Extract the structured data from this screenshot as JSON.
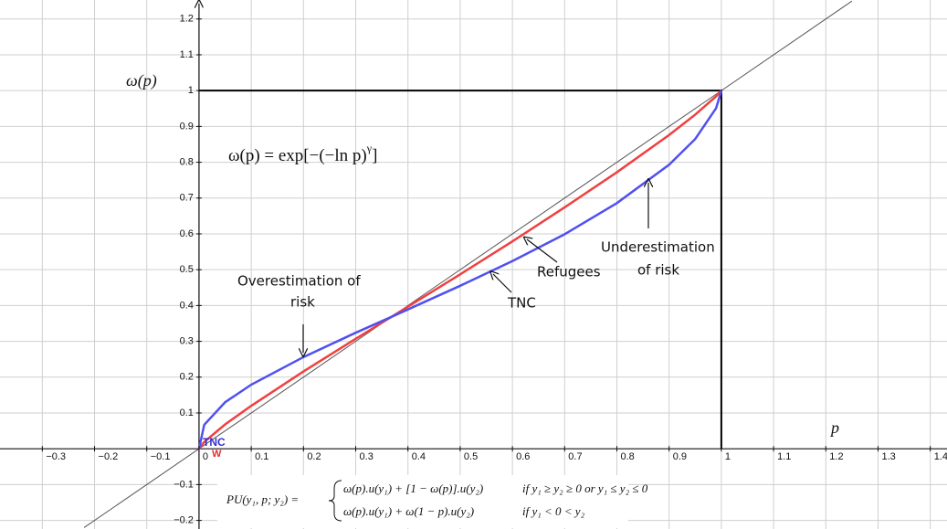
{
  "chart_data": {
    "type": "line",
    "x_label": "p",
    "y_label": "ω(p)",
    "formula": {
      "base": "ω(p) = exp[−(−ln p)",
      "exp": "γ",
      "end": "]"
    },
    "pu_formula": {
      "lhs": "PU(y₁, p; y₂) =",
      "case1": "ω(p).u(y₁) + [1 − ω(p)].u(y₂)",
      "cond1": "if y₁ ≥ y₂ ≥ 0 or y₁ ≤ y₂ ≤ 0",
      "case2": "ω(p).u(y₁) + ω(1 − p).u(y₂)",
      "cond2": "if y₁ < 0 < y₂"
    },
    "annotations": {
      "over1": "Overestimation of",
      "over2": "risk",
      "under1": "Underestimation",
      "under2": "of risk",
      "w": "W"
    },
    "xlim": [
      -0.381,
      1.432
    ],
    "ylim": [
      -0.224,
      1.253
    ],
    "grid": true,
    "xticks": [
      {
        "value": -0.3,
        "label": "−0.3"
      },
      {
        "value": -0.2,
        "label": "−0.2"
      },
      {
        "value": -0.1,
        "label": "−0.1"
      },
      0,
      0.1,
      0.2,
      0.3,
      0.4,
      0.5,
      0.6,
      0.7,
      0.8,
      0.9,
      1,
      1.1,
      1.2,
      1.3,
      1.4
    ],
    "yticks": [
      {
        "value": -0.2,
        "label": "−0.2"
      },
      {
        "value": -0.1,
        "label": "−0.1"
      },
      0.1,
      0.2,
      0.3,
      0.4,
      0.5,
      0.6,
      0.7,
      0.8,
      0.9,
      1,
      1.1,
      1.2
    ],
    "series": [
      {
        "color": "#555555",
        "x": [
          -0.22,
          1.25
        ],
        "values": [
          -0.22,
          1.25
        ]
      },
      {
        "color": "#000000",
        "x": [
          0,
          1,
          1
        ],
        "values": [
          1,
          1,
          0
        ]
      },
      {
        "name": "Refugees",
        "color": "#f04040",
        "x": [
          0,
          0.01,
          0.05,
          0.1,
          0.2,
          0.3,
          0.368,
          0.5,
          0.6,
          0.7,
          0.8,
          0.9,
          0.95,
          0.99,
          1
        ],
        "values": [
          0,
          0.019,
          0.068,
          0.12,
          0.216,
          0.307,
          0.368,
          0.487,
          0.579,
          0.674,
          0.772,
          0.876,
          0.933,
          0.984,
          1
        ]
      },
      {
        "name": "TNC",
        "color": "#5050f0",
        "x": [
          0,
          0.01,
          0.05,
          0.1,
          0.2,
          0.3,
          0.368,
          0.5,
          0.6,
          0.7,
          0.8,
          0.9,
          0.95,
          0.99,
          1
        ],
        "values": [
          0,
          0.067,
          0.13,
          0.179,
          0.256,
          0.324,
          0.368,
          0.455,
          0.524,
          0.599,
          0.686,
          0.793,
          0.865,
          0.951,
          1
        ]
      }
    ]
  }
}
